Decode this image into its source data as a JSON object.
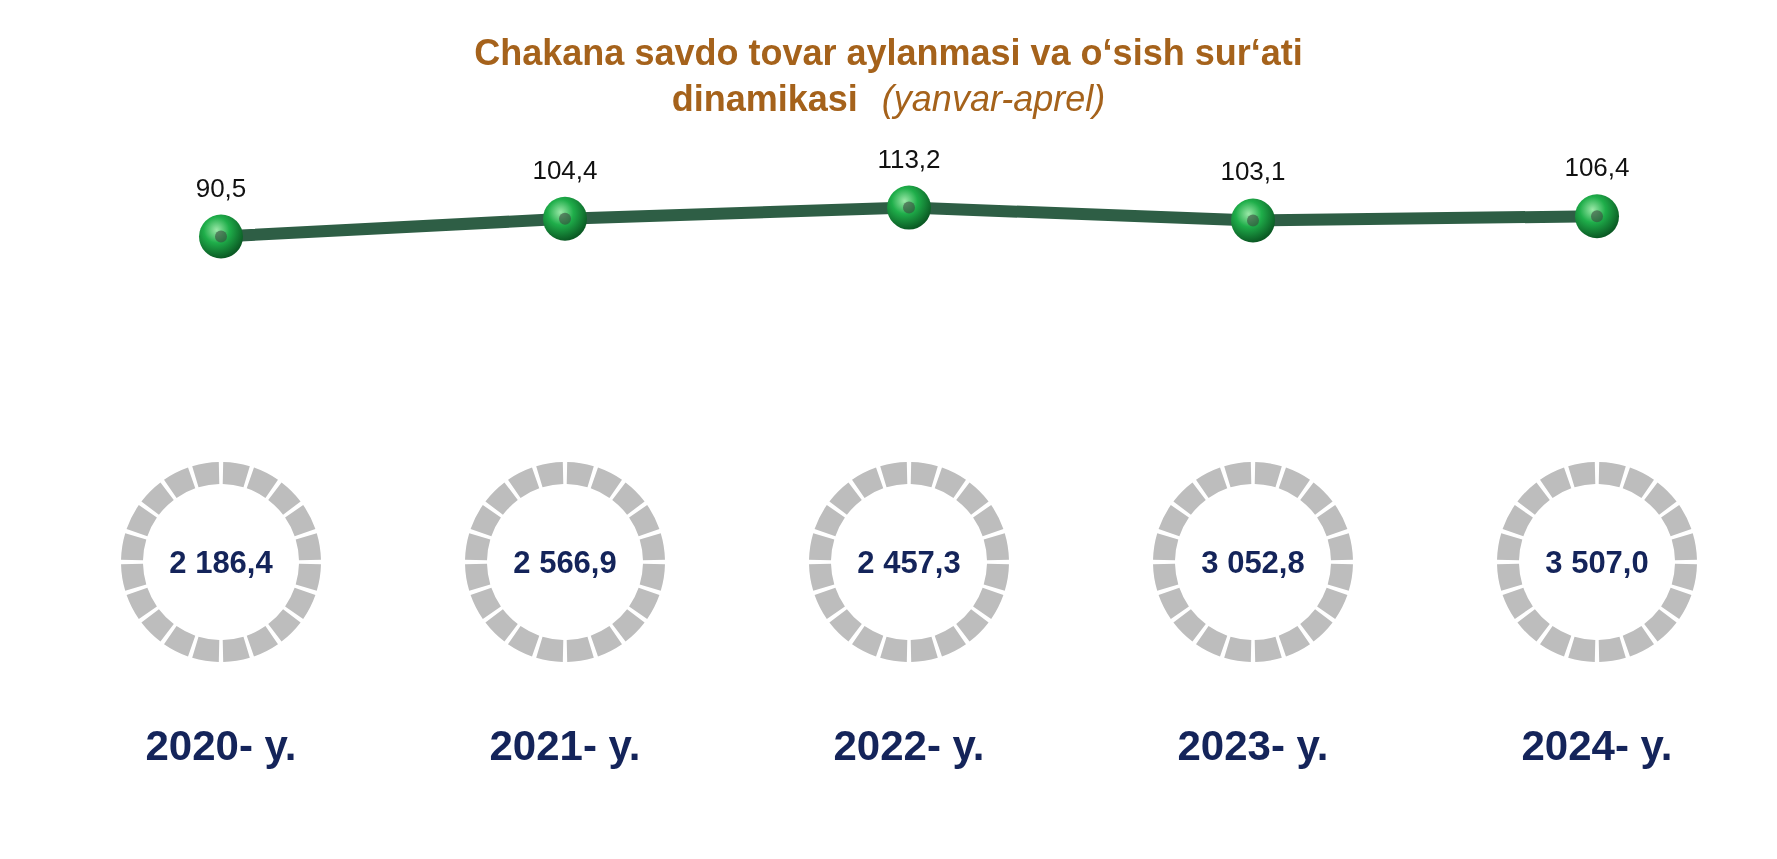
{
  "chart_data": {
    "type": "line",
    "title": "Chakana savdo tovar aylanmasi va o‘sish sur‘ati dinamikasi",
    "subtitle": "(yanvar-aprel)",
    "categories": [
      "2020- y.",
      "2021- y.",
      "2022- y.",
      "2023- y.",
      "2024- y."
    ],
    "values": [
      90.5,
      104.4,
      113.2,
      103.1,
      106.4
    ],
    "value_labels": [
      "90,5",
      "104,4",
      "113,2",
      "103,1",
      "106,4"
    ],
    "color": "#2e5e45",
    "marker": "circle",
    "legend": false,
    "grid": false,
    "annotations": [
      "2 186,4",
      "2 566,9",
      "2 457,3",
      "3 052,8",
      "3 507,0"
    ]
  }
}
